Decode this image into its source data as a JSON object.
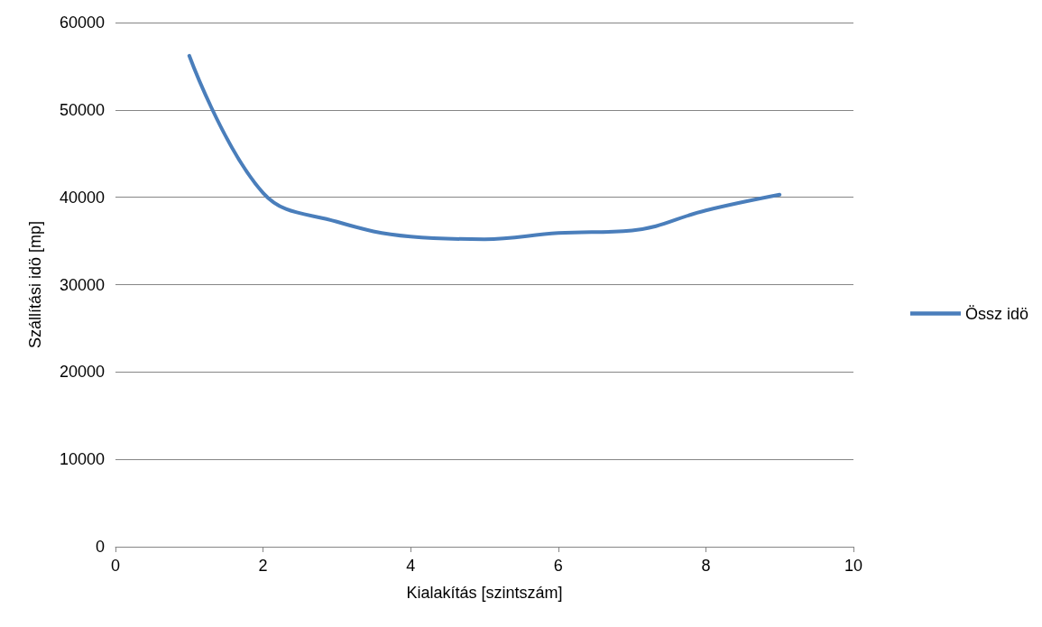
{
  "chart_data": {
    "type": "line",
    "xlabel": "Kialakítás [szintszám]",
    "ylabel": "Szállítási idö [mp]",
    "x": [
      1,
      2,
      3,
      4,
      5,
      6,
      7,
      8,
      9
    ],
    "series": [
      {
        "name": "Össz idö",
        "color": "#4a7ebb",
        "values": [
          56200,
          40500,
          37200,
          35500,
          35200,
          35900,
          36200,
          38500,
          40300
        ]
      }
    ],
    "xlim": [
      0,
      10
    ],
    "xticks": [
      0,
      2,
      4,
      6,
      8,
      10
    ],
    "ylim": [
      0,
      60000
    ],
    "yticks": [
      0,
      10000,
      20000,
      30000,
      40000,
      50000,
      60000
    ],
    "grid": "y",
    "legend": "right",
    "marker": "none",
    "line_style": "solid"
  }
}
